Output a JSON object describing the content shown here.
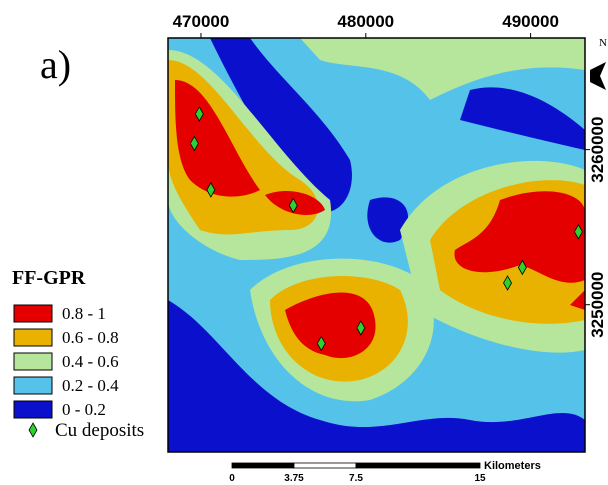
{
  "panel_label": "a)",
  "map": {
    "xlim": [
      468000,
      493300
    ],
    "ylim": [
      3240500,
      3267200
    ],
    "xticks": [
      470000,
      480000,
      490000
    ],
    "yticks": [
      3250000,
      3260000
    ],
    "deposits": {
      "color": "#2ed12e",
      "x": [
        469900,
        469600,
        470600,
        475600,
        479700,
        477300,
        489500,
        488600,
        492900
      ],
      "y": [
        3262300,
        3260400,
        3257400,
        3256400,
        3248500,
        3247500,
        3252400,
        3251400,
        3254700
      ]
    }
  },
  "north": "N",
  "legend": {
    "title": "FF-GPR",
    "items": [
      {
        "label": "0.8 - 1",
        "color": "#e50000"
      },
      {
        "label": "0.6 - 0.8",
        "color": "#e9b200"
      },
      {
        "label": "0.4 - 0.6",
        "color": "#b5e69c"
      },
      {
        "label": "0.2 - 0.4",
        "color": "#55c2ea"
      },
      {
        "label": "0 - 0.2",
        "color": "#0a10cc"
      }
    ],
    "deposit_label": "Cu deposits"
  },
  "scale_bar": {
    "ticks": [
      0,
      3.75,
      7.5,
      15
    ],
    "unit": "Kilometers"
  }
}
